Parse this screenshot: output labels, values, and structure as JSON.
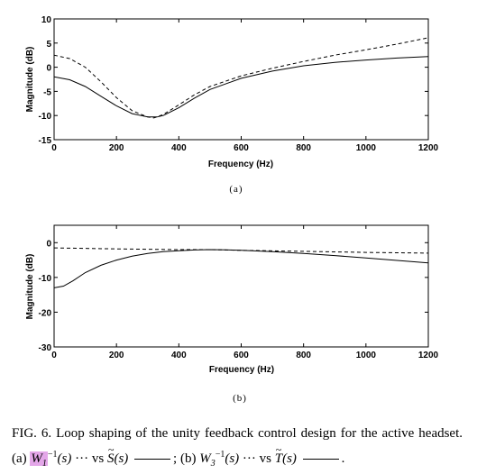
{
  "chart_data": [
    {
      "type": "line",
      "panel_label": "(a)",
      "xlabel": "Frequency (Hz)",
      "ylabel": "Magnitude (dB)",
      "xlim": [
        0,
        1200
      ],
      "ylim": [
        -15,
        10
      ],
      "xticks": [
        0,
        200,
        400,
        600,
        800,
        1000,
        1200
      ],
      "yticks": [
        10,
        5,
        0,
        -5,
        -10,
        -15
      ],
      "grid": false,
      "series": [
        {
          "style": "dashed",
          "x": [
            0,
            50,
            100,
            150,
            200,
            250,
            300,
            320,
            350,
            400,
            450,
            500,
            600,
            700,
            800,
            900,
            1000,
            1100,
            1200
          ],
          "y": [
            2.5,
            1.8,
            0.0,
            -3.0,
            -6.3,
            -9.0,
            -10.3,
            -10.5,
            -9.8,
            -7.8,
            -5.7,
            -4.0,
            -1.8,
            -0.2,
            1.2,
            2.5,
            3.6,
            4.8,
            6.1
          ]
        },
        {
          "style": "solid",
          "x": [
            0,
            50,
            100,
            150,
            200,
            250,
            300,
            330,
            350,
            400,
            450,
            500,
            600,
            700,
            800,
            900,
            1000,
            1100,
            1200
          ],
          "y": [
            -2.0,
            -2.6,
            -4.0,
            -6.0,
            -8.0,
            -9.6,
            -10.3,
            -10.3,
            -10.0,
            -8.4,
            -6.4,
            -4.6,
            -2.3,
            -0.8,
            0.3,
            1.0,
            1.5,
            1.9,
            2.2
          ]
        }
      ]
    },
    {
      "type": "line",
      "panel_label": "(b)",
      "xlabel": "Frequency (Hz)",
      "ylabel": "Magnitude (dB)",
      "xlim": [
        0,
        1200
      ],
      "ylim": [
        -30,
        5
      ],
      "xticks": [
        0,
        200,
        400,
        600,
        800,
        1000,
        1200
      ],
      "yticks": [
        0,
        -10,
        -20,
        -30
      ],
      "grid": false,
      "series": [
        {
          "style": "dashed",
          "x": [
            0,
            200,
            400,
            500,
            600,
            800,
            1000,
            1200
          ],
          "y": [
            -1.5,
            -1.8,
            -2.0,
            -2.0,
            -2.2,
            -2.5,
            -2.8,
            -3.0
          ]
        },
        {
          "style": "solid",
          "x": [
            0,
            30,
            60,
            100,
            150,
            200,
            250,
            300,
            350,
            400,
            450,
            500,
            550,
            600,
            700,
            800,
            900,
            1000,
            1100,
            1200
          ],
          "y": [
            -13.0,
            -12.5,
            -11.0,
            -8.6,
            -6.5,
            -5.0,
            -3.9,
            -3.1,
            -2.6,
            -2.3,
            -2.1,
            -2.0,
            -2.05,
            -2.2,
            -2.6,
            -3.1,
            -3.7,
            -4.4,
            -5.1,
            -5.8
          ]
        }
      ]
    }
  ],
  "caption": {
    "fig_label": "FIG. 6.",
    "text_1": "Loop shaping of the unity feedback control design for the active headset. (a)",
    "w1": "W",
    "w1_sub": "1",
    "inv_sup": "−1",
    "arg": "(s)",
    "vs_text": "··· vs",
    "S_sym": "S",
    "semi": "; (b)",
    "w3": "W",
    "w3_sub": "3",
    "T_sym": "T",
    "end": "."
  }
}
